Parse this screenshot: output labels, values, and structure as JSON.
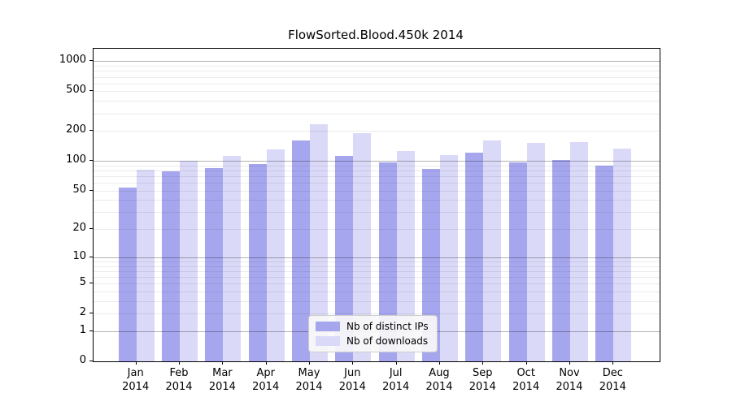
{
  "chart_data": {
    "type": "bar",
    "title": "FlowSorted.Blood.450k 2014",
    "year_label": "2014",
    "categories": [
      "Jan",
      "Feb",
      "Mar",
      "Apr",
      "May",
      "Jun",
      "Jul",
      "Aug",
      "Sep",
      "Oct",
      "Nov",
      "Dec"
    ],
    "series": [
      {
        "name": "Nb of distinct IPs",
        "color": "#a6a6ef",
        "values": [
          54,
          79,
          85,
          93,
          160,
          112,
          97,
          83,
          120,
          96,
          102,
          90
        ]
      },
      {
        "name": "Nb of downloads",
        "color": "#dadaf8",
        "values": [
          81,
          100,
          112,
          130,
          236,
          192,
          125,
          114,
          161,
          153,
          156,
          132
        ]
      }
    ],
    "xlabel": "",
    "ylabel": "",
    "yscale": "log10(1+x)",
    "ylim": [
      0,
      1100
    ],
    "ytick_values": [
      0,
      1,
      2,
      5,
      10,
      20,
      50,
      100,
      200,
      500,
      1000
    ],
    "major_gridline_values": [
      1,
      10,
      100,
      1000
    ],
    "minor_gridline_values": [
      2,
      3,
      4,
      5,
      6,
      7,
      8,
      9,
      20,
      30,
      40,
      50,
      60,
      70,
      80,
      90,
      200,
      300,
      400,
      500,
      600,
      700,
      800,
      900
    ],
    "grid": true,
    "legend_position": "lower center"
  },
  "style": {
    "background": "#ffffff",
    "spine_color": "#000000",
    "major_grid_color": "#b3b3b3",
    "minor_grid_color": "#ebebeb",
    "legend_border_color": "#cccccc",
    "legend_background": "#f7f7f7"
  }
}
